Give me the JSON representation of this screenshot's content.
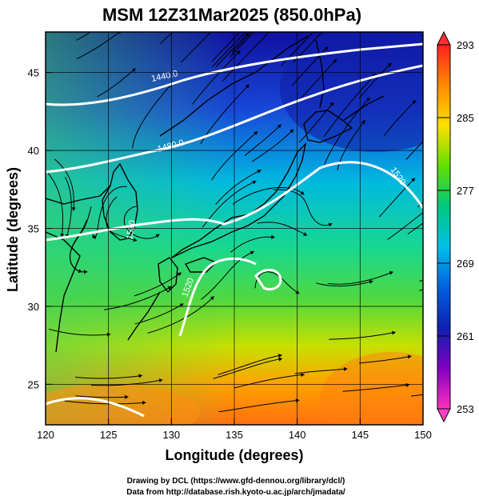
{
  "title": "MSM 12Z31Mar2025 (850.0hPa)",
  "xlabel": "Longitude (degrees)",
  "ylabel": "Latitude  (degrees)",
  "credit_line1": "Drawing by DCL (https://www.gfd-dennou.org/library/dcl/)",
  "credit_line2": "Data from http://database.rish.kyoto-u.ac.jp/arch/jmadata/",
  "map": {
    "lon_range": [
      120,
      150
    ],
    "lat_range": [
      22.4,
      47.6
    ],
    "lon_ticks": [
      120,
      125,
      130,
      135,
      140,
      145,
      150
    ],
    "lat_ticks": [
      25,
      30,
      35,
      40,
      45
    ],
    "lon_tick_labels": [
      "120",
      "125",
      "130",
      "135",
      "140",
      "145",
      "150"
    ],
    "lat_tick_labels": [
      "25",
      "30",
      "35",
      "40",
      "45"
    ],
    "grid": true
  },
  "colorbar": {
    "min": 253,
    "max": 293,
    "labels": [
      "293",
      "285",
      "277",
      "269",
      "261",
      "253"
    ],
    "label_values": [
      293,
      285,
      277,
      269,
      261,
      253
    ],
    "colors": [
      "#ff2020",
      "#ff8a00",
      "#ffe000",
      "#60e000",
      "#00c880",
      "#00c0e8",
      "#0060e0",
      "#1020b0",
      "#8000c0",
      "#ff30c0"
    ]
  },
  "contour_labels": [
    "1440.0",
    "1480.0",
    "1520",
    "1520",
    "1520"
  ],
  "colors": {
    "contour": "#ffffff",
    "coastline": "#000000",
    "streamline": "#000000"
  }
}
